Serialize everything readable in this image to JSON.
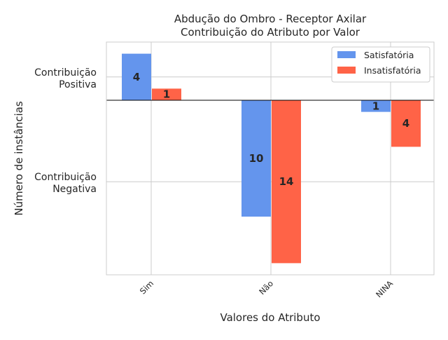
{
  "chart_data": {
    "type": "bar",
    "title": "Abdução do Ombro - Receptor Axilar",
    "subtitle": "Contribuição do Atributo por Valor",
    "xlabel": "Valores do Atributo",
    "ylabel": "Número de instâncias",
    "categories": [
      "Sim",
      "Não",
      "NINA"
    ],
    "series": [
      {
        "name": "Satisfatória",
        "values": [
          4,
          -10,
          -1
        ],
        "labels": [
          "4",
          "10",
          "1"
        ],
        "color": "#6495ED"
      },
      {
        "name": "Insatisfatória",
        "values": [
          1,
          -14,
          -4
        ],
        "labels": [
          "1",
          "14",
          "4"
        ],
        "color": "#FF6347"
      }
    ],
    "ylim": [
      -15,
      5
    ],
    "yticks": [
      {
        "value": 2,
        "line1": "Contribuição",
        "line2": "Positiva"
      },
      {
        "value": -7,
        "line1": "Contribuição",
        "line2": "Negativa"
      }
    ],
    "grid": true,
    "zero_line": true,
    "legend_position": "top-right"
  }
}
